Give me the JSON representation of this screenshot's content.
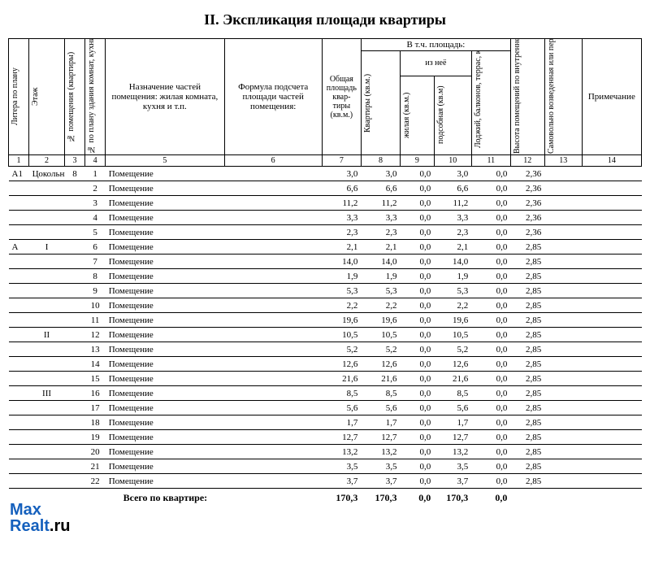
{
  "title": "II. Экспликация площади квартиры",
  "headers": {
    "c1": "Литера по плану",
    "c2": "Этаж",
    "c3": "№ помещения (квартиры)",
    "c4": "№ по плану здания комнат, кухни, корид и пр.",
    "c5": "Назначение частей помещения: жилая комната, кухня и т.п.",
    "c6": "Формула подсчета площади частей помещения:",
    "c7": "Общая площадь квар-тиры (кв.м.)",
    "c8_group": "В т.ч. площадь:",
    "c8": "Квартиры (кв.м.)",
    "c9_10": "из неё",
    "c9": "жилая (кв.м.)",
    "c10": "подсобная (кв.м)",
    "c11": "Лоджий, балконов, террас, кладовых, веранд, (с коэф.)",
    "c12": "Высота помещений по внутреннему обмеру (м.)",
    "c13": "Самовольно возведенная или переоборудованная площадь (кв.м.)",
    "c14": "Примечание"
  },
  "colnums": [
    "1",
    "2",
    "3",
    "4",
    "5",
    "6",
    "7",
    "8",
    "9",
    "10",
    "11",
    "12",
    "13",
    "14"
  ],
  "rows": [
    {
      "lit": "А1",
      "fl": "Цокольный",
      "apt": "8",
      "n": "1",
      "name": "Помещение",
      "a": "3,0",
      "b": "3,0",
      "c": "0,0",
      "d": "3,0",
      "e": "0,0",
      "h": "2,36"
    },
    {
      "lit": "",
      "fl": "",
      "apt": "",
      "n": "2",
      "name": "Помещение",
      "a": "6,6",
      "b": "6,6",
      "c": "0,0",
      "d": "6,6",
      "e": "0,0",
      "h": "2,36"
    },
    {
      "lit": "",
      "fl": "",
      "apt": "",
      "n": "3",
      "name": "Помещение",
      "a": "11,2",
      "b": "11,2",
      "c": "0,0",
      "d": "11,2",
      "e": "0,0",
      "h": "2,36"
    },
    {
      "lit": "",
      "fl": "",
      "apt": "",
      "n": "4",
      "name": "Помещение",
      "a": "3,3",
      "b": "3,3",
      "c": "0,0",
      "d": "3,3",
      "e": "0,0",
      "h": "2,36"
    },
    {
      "lit": "",
      "fl": "",
      "apt": "",
      "n": "5",
      "name": "Помещение",
      "a": "2,3",
      "b": "2,3",
      "c": "0,0",
      "d": "2,3",
      "e": "0,0",
      "h": "2,36"
    },
    {
      "lit": "А",
      "fl": "I",
      "apt": "",
      "n": "6",
      "name": "Помещение",
      "a": "2,1",
      "b": "2,1",
      "c": "0,0",
      "d": "2,1",
      "e": "0,0",
      "h": "2,85"
    },
    {
      "lit": "",
      "fl": "",
      "apt": "",
      "n": "7",
      "name": "Помещение",
      "a": "14,0",
      "b": "14,0",
      "c": "0,0",
      "d": "14,0",
      "e": "0,0",
      "h": "2,85"
    },
    {
      "lit": "",
      "fl": "",
      "apt": "",
      "n": "8",
      "name": "Помещение",
      "a": "1,9",
      "b": "1,9",
      "c": "0,0",
      "d": "1,9",
      "e": "0,0",
      "h": "2,85"
    },
    {
      "lit": "",
      "fl": "",
      "apt": "",
      "n": "9",
      "name": "Помещение",
      "a": "5,3",
      "b": "5,3",
      "c": "0,0",
      "d": "5,3",
      "e": "0,0",
      "h": "2,85"
    },
    {
      "lit": "",
      "fl": "",
      "apt": "",
      "n": "10",
      "name": "Помещение",
      "a": "2,2",
      "b": "2,2",
      "c": "0,0",
      "d": "2,2",
      "e": "0,0",
      "h": "2,85"
    },
    {
      "lit": "",
      "fl": "",
      "apt": "",
      "n": "11",
      "name": "Помещение",
      "a": "19,6",
      "b": "19,6",
      "c": "0,0",
      "d": "19,6",
      "e": "0,0",
      "h": "2,85"
    },
    {
      "lit": "",
      "fl": "II",
      "apt": "",
      "n": "12",
      "name": "Помещение",
      "a": "10,5",
      "b": "10,5",
      "c": "0,0",
      "d": "10,5",
      "e": "0,0",
      "h": "2,85"
    },
    {
      "lit": "",
      "fl": "",
      "apt": "",
      "n": "13",
      "name": "Помещение",
      "a": "5,2",
      "b": "5,2",
      "c": "0,0",
      "d": "5,2",
      "e": "0,0",
      "h": "2,85"
    },
    {
      "lit": "",
      "fl": "",
      "apt": "",
      "n": "14",
      "name": "Помещение",
      "a": "12,6",
      "b": "12,6",
      "c": "0,0",
      "d": "12,6",
      "e": "0,0",
      "h": "2,85"
    },
    {
      "lit": "",
      "fl": "",
      "apt": "",
      "n": "15",
      "name": "Помещение",
      "a": "21,6",
      "b": "21,6",
      "c": "0,0",
      "d": "21,6",
      "e": "0,0",
      "h": "2,85"
    },
    {
      "lit": "",
      "fl": "III",
      "apt": "",
      "n": "16",
      "name": "Помещение",
      "a": "8,5",
      "b": "8,5",
      "c": "0,0",
      "d": "8,5",
      "e": "0,0",
      "h": "2,85"
    },
    {
      "lit": "",
      "fl": "",
      "apt": "",
      "n": "17",
      "name": "Помещение",
      "a": "5,6",
      "b": "5,6",
      "c": "0,0",
      "d": "5,6",
      "e": "0,0",
      "h": "2,85"
    },
    {
      "lit": "",
      "fl": "",
      "apt": "",
      "n": "18",
      "name": "Помещение",
      "a": "1,7",
      "b": "1,7",
      "c": "0,0",
      "d": "1,7",
      "e": "0,0",
      "h": "2,85"
    },
    {
      "lit": "",
      "fl": "",
      "apt": "",
      "n": "19",
      "name": "Помещение",
      "a": "12,7",
      "b": "12,7",
      "c": "0,0",
      "d": "12,7",
      "e": "0,0",
      "h": "2,85"
    },
    {
      "lit": "",
      "fl": "",
      "apt": "",
      "n": "20",
      "name": "Помещение",
      "a": "13,2",
      "b": "13,2",
      "c": "0,0",
      "d": "13,2",
      "e": "0,0",
      "h": "2,85"
    },
    {
      "lit": "",
      "fl": "",
      "apt": "",
      "n": "21",
      "name": "Помещение",
      "a": "3,5",
      "b": "3,5",
      "c": "0,0",
      "d": "3,5",
      "e": "0,0",
      "h": "2,85"
    },
    {
      "lit": "",
      "fl": "",
      "apt": "",
      "n": "22",
      "name": "Помещение",
      "a": "3,7",
      "b": "3,7",
      "c": "0,0",
      "d": "3,7",
      "e": "0,0",
      "h": "2,85"
    }
  ],
  "total": {
    "label": "Всего по квартире:",
    "a": "170,3",
    "b": "170,3",
    "c": "0,0",
    "d": "170,3",
    "e": "0,0"
  },
  "watermark": {
    "line1a": "Max",
    "line2a": "Realt",
    "line2b": ".ru"
  }
}
